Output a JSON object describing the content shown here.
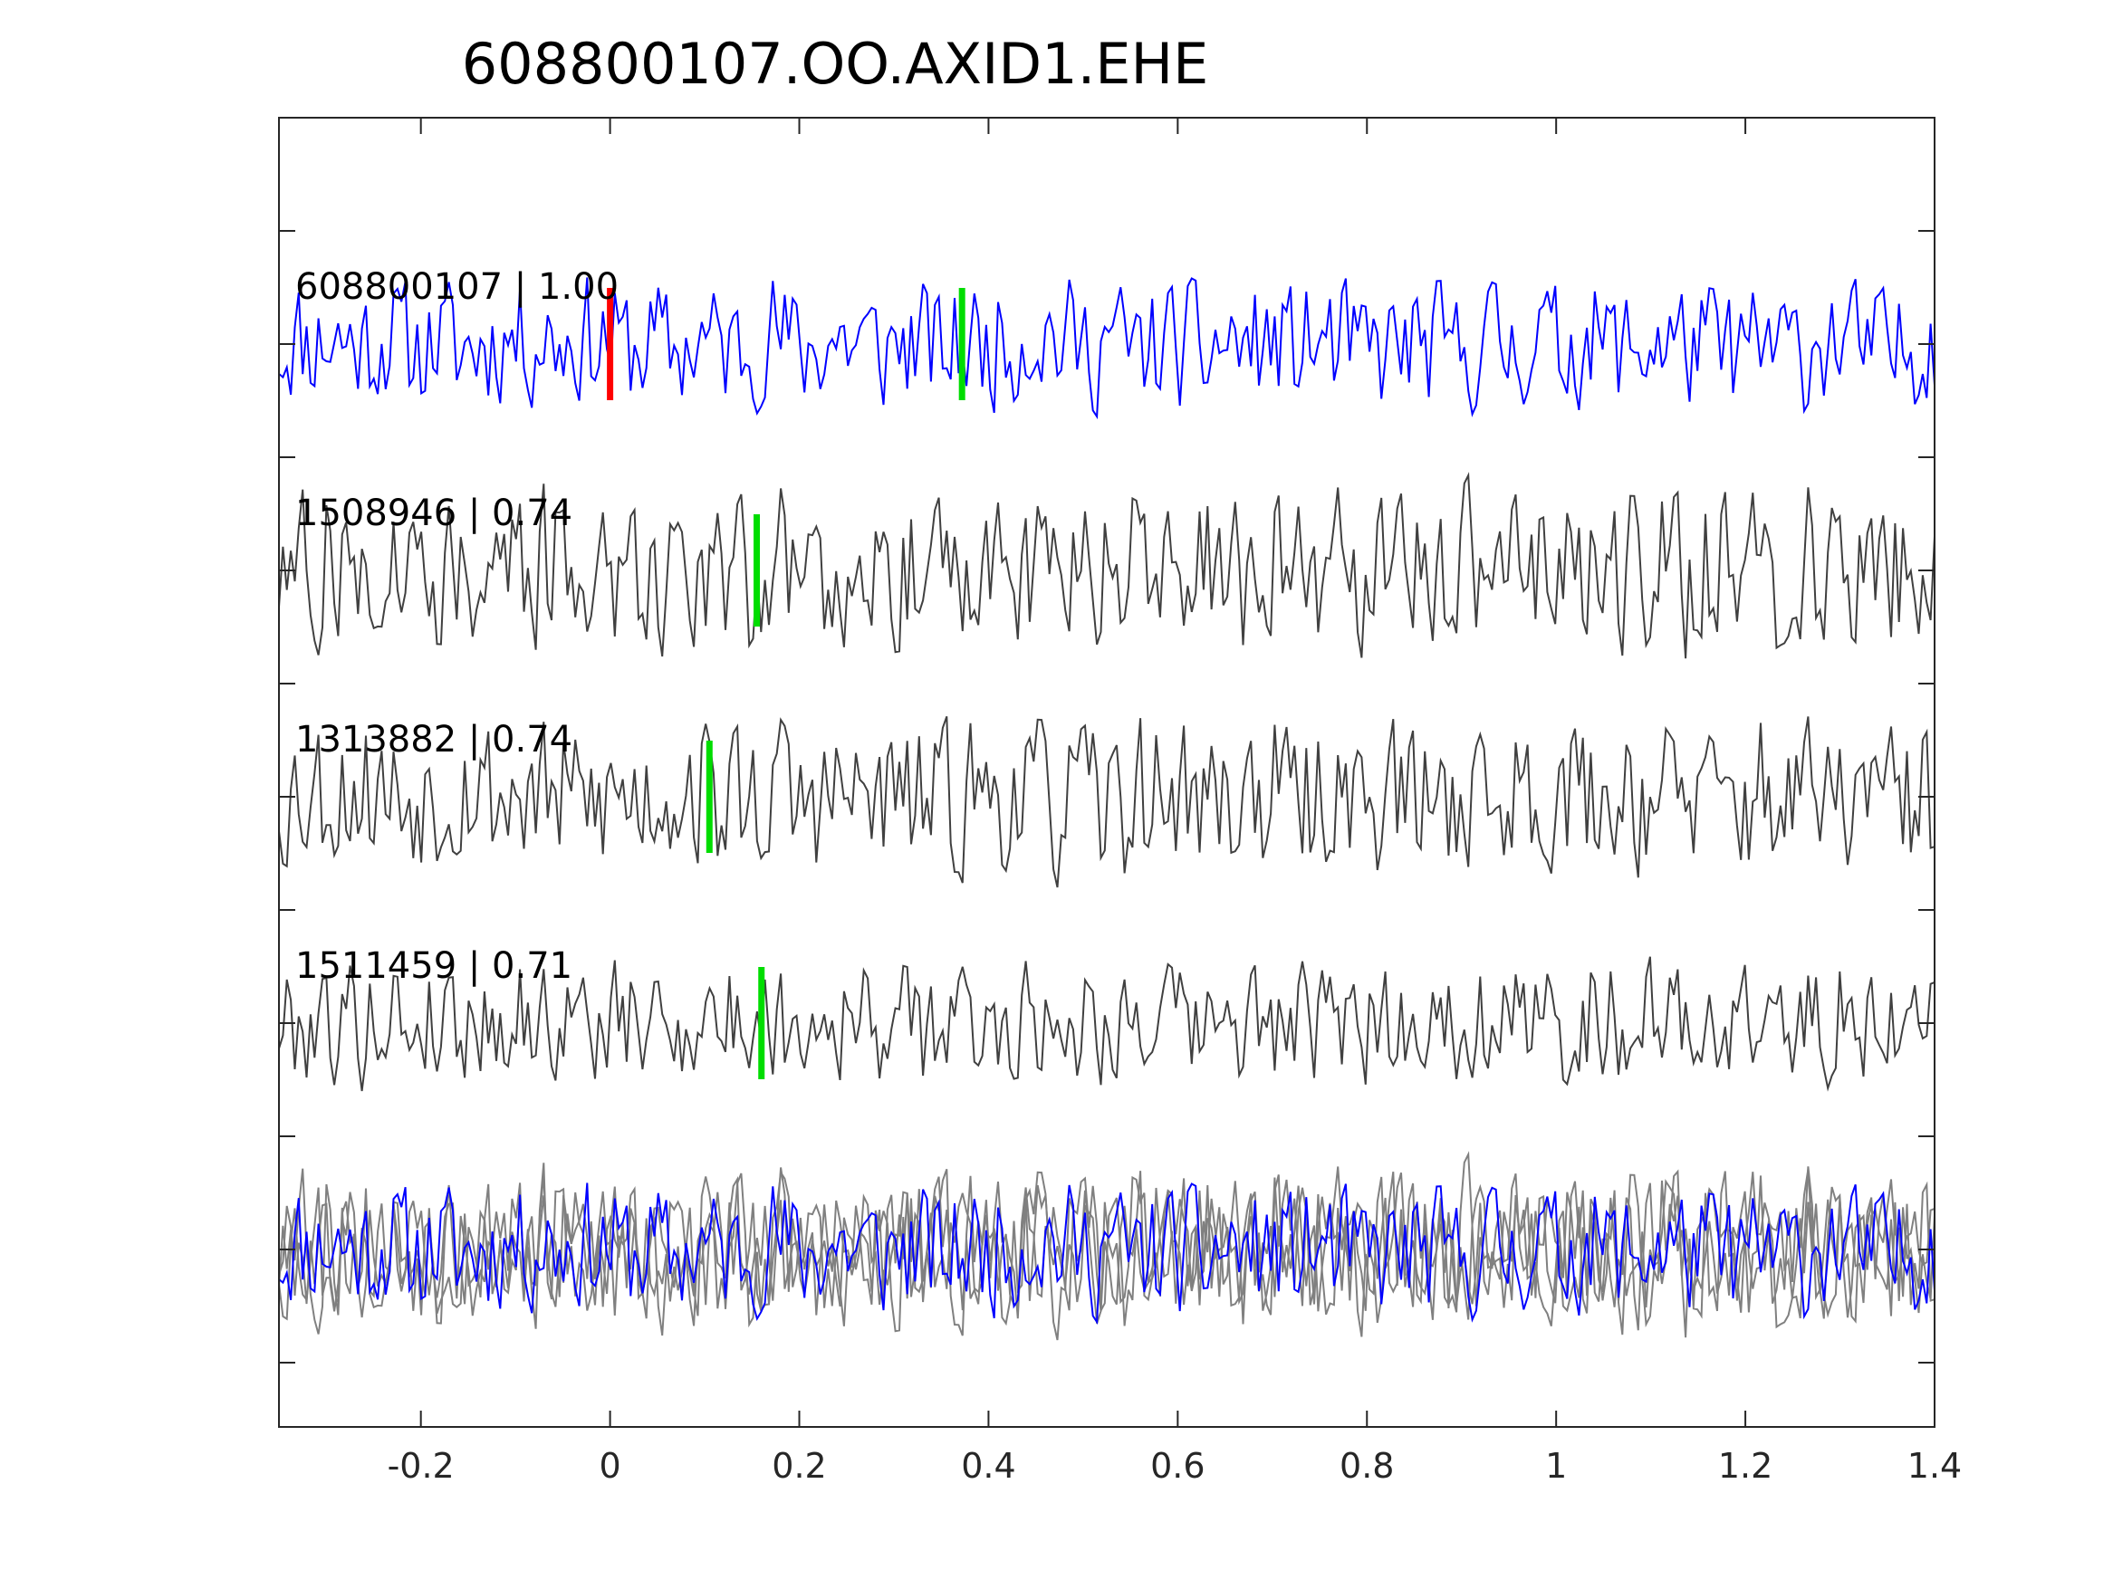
{
  "chart_data": {
    "type": "line",
    "title": "608800107.OO.AXID1.EHE",
    "xlabel": "",
    "ylabel": "",
    "xlim": [
      -0.35,
      1.4
    ],
    "xticks": [
      {
        "value": -0.2,
        "label": "-0.2"
      },
      {
        "value": 0,
        "label": "0"
      },
      {
        "value": 0.2,
        "label": "0.2"
      },
      {
        "value": 0.4,
        "label": "0.4"
      },
      {
        "value": 0.6,
        "label": "0.6"
      },
      {
        "value": 0.8,
        "label": "0.8"
      },
      {
        "value": 1,
        "label": "1"
      },
      {
        "value": 1.2,
        "label": "1.2"
      },
      {
        "value": 1.4,
        "label": "1.4"
      }
    ],
    "grid": false,
    "colors": {
      "master_trace": "#0000ff",
      "other_trace": "#404040",
      "overlay_other": "#808080",
      "p_pick": "#ff0000",
      "s_pick": "#00dd00",
      "axes": "#262626"
    },
    "traces": [
      {
        "label": "608800107 | 1.00",
        "correlation": 1.0,
        "picks": [
          {
            "phase": "P",
            "time": 0.0
          },
          {
            "phase": "S",
            "time": 0.372
          }
        ],
        "seed": 11,
        "amp": 0.32
      },
      {
        "label": "1508946 | 0.74",
        "correlation": 0.74,
        "picks": [
          {
            "phase": "S",
            "time": 0.155
          }
        ],
        "seed": 27,
        "amp": 0.42
      },
      {
        "label": "1313882 | 0.74",
        "correlation": 0.74,
        "picks": [
          {
            "phase": "S",
            "time": 0.105
          }
        ],
        "seed": 53,
        "amp": 0.4
      },
      {
        "label": "1511459 | 0.71",
        "correlation": 0.71,
        "picks": [
          {
            "phase": "S",
            "time": 0.16
          }
        ],
        "seed": 79,
        "amp": 0.3
      }
    ],
    "overlay": {
      "label": ""
    }
  }
}
